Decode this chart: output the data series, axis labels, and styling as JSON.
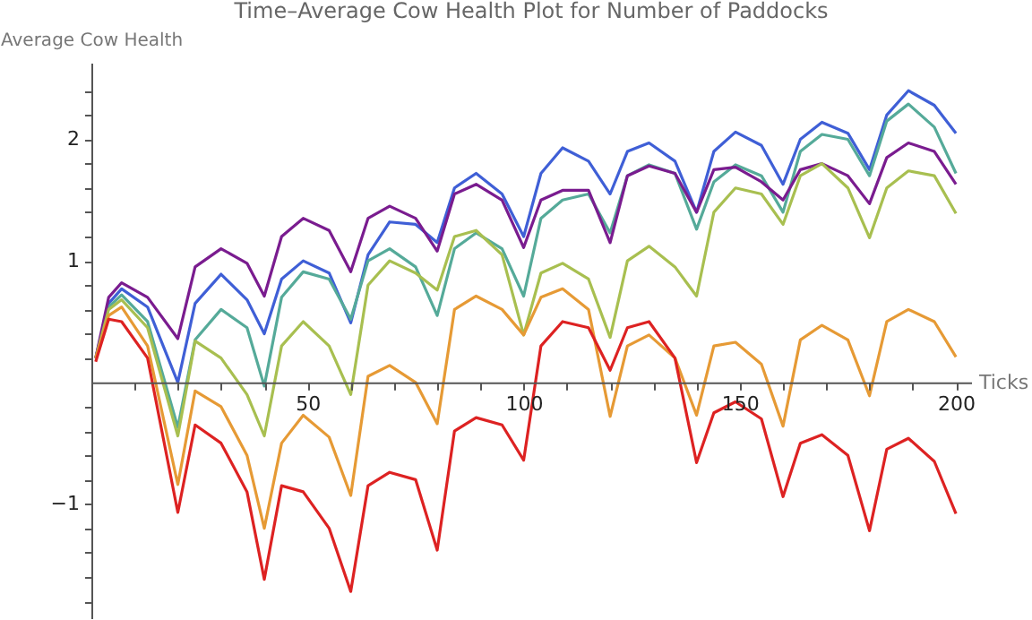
{
  "chart_data": {
    "type": "line",
    "title": "Time–Average Cow Health Plot for Number of Paddocks",
    "xlabel": "Ticks",
    "ylabel": "Average Cow Health",
    "x": [
      1,
      4,
      7,
      13,
      20,
      24,
      30,
      36,
      40,
      44,
      49,
      55,
      60,
      64,
      69,
      75,
      80,
      84,
      89,
      95,
      100,
      104,
      109,
      115,
      120,
      124,
      129,
      135,
      140,
      144,
      149,
      155,
      160,
      164,
      169,
      175,
      180,
      184,
      189,
      195,
      200
    ],
    "series": [
      {
        "color": "#3f5fd6",
        "values": [
          0.2,
          0.65,
          0.77,
          0.62,
          0.0,
          0.65,
          0.89,
          0.68,
          0.4,
          0.85,
          1.0,
          0.9,
          0.49,
          1.05,
          1.32,
          1.3,
          1.15,
          1.6,
          1.72,
          1.55,
          1.2,
          1.72,
          1.93,
          1.82,
          1.55,
          1.9,
          1.97,
          1.82,
          1.4,
          1.9,
          2.06,
          1.95,
          1.63,
          2.0,
          2.14,
          2.05,
          1.75,
          2.2,
          2.4,
          2.28,
          2.05
        ]
      },
      {
        "color": "#55aa99",
        "values": [
          0.2,
          0.62,
          0.72,
          0.5,
          -0.37,
          0.35,
          0.6,
          0.45,
          -0.03,
          0.7,
          0.91,
          0.85,
          0.52,
          1.0,
          1.1,
          0.95,
          0.55,
          1.1,
          1.23,
          1.1,
          0.71,
          1.35,
          1.5,
          1.55,
          1.23,
          1.7,
          1.79,
          1.72,
          1.26,
          1.65,
          1.79,
          1.7,
          1.4,
          1.9,
          2.04,
          2.0,
          1.7,
          2.15,
          2.29,
          2.1,
          1.72
        ]
      },
      {
        "color": "#7a1c8f",
        "values": [
          0.2,
          0.7,
          0.82,
          0.7,
          0.36,
          0.95,
          1.1,
          0.98,
          0.71,
          1.2,
          1.35,
          1.25,
          0.91,
          1.35,
          1.45,
          1.35,
          1.08,
          1.55,
          1.63,
          1.5,
          1.11,
          1.5,
          1.58,
          1.58,
          1.15,
          1.7,
          1.78,
          1.72,
          1.4,
          1.75,
          1.77,
          1.65,
          1.5,
          1.75,
          1.8,
          1.7,
          1.47,
          1.85,
          1.97,
          1.9,
          1.63
        ]
      },
      {
        "color": "#a8bf50",
        "values": [
          0.2,
          0.6,
          0.68,
          0.45,
          -0.44,
          0.34,
          0.2,
          -0.1,
          -0.44,
          0.3,
          0.5,
          0.3,
          -0.1,
          0.8,
          1.0,
          0.9,
          0.76,
          1.2,
          1.25,
          1.05,
          0.39,
          0.9,
          0.98,
          0.85,
          0.37,
          1.0,
          1.12,
          0.95,
          0.71,
          1.4,
          1.6,
          1.55,
          1.3,
          1.7,
          1.8,
          1.6,
          1.19,
          1.6,
          1.74,
          1.7,
          1.39
        ]
      },
      {
        "color": "#e69a35",
        "values": [
          0.2,
          0.55,
          0.62,
          0.3,
          -0.84,
          -0.07,
          -0.2,
          -0.6,
          -1.2,
          -0.5,
          -0.27,
          -0.45,
          -0.93,
          0.05,
          0.14,
          0.0,
          -0.34,
          0.6,
          0.71,
          0.6,
          0.39,
          0.7,
          0.77,
          0.6,
          -0.28,
          0.3,
          0.39,
          0.2,
          -0.27,
          0.3,
          0.33,
          0.15,
          -0.36,
          0.35,
          0.47,
          0.35,
          -0.11,
          0.5,
          0.6,
          0.5,
          0.21
        ]
      },
      {
        "color": "#dd2222",
        "values": [
          0.17,
          0.52,
          0.5,
          0.2,
          -1.07,
          -0.35,
          -0.5,
          -0.9,
          -1.62,
          -0.85,
          -0.9,
          -1.2,
          -1.72,
          -0.85,
          -0.74,
          -0.8,
          -1.38,
          -0.4,
          -0.29,
          -0.35,
          -0.64,
          0.3,
          0.5,
          0.45,
          0.1,
          0.45,
          0.5,
          0.2,
          -0.66,
          -0.25,
          -0.16,
          -0.3,
          -0.94,
          -0.5,
          -0.43,
          -0.6,
          -1.22,
          -0.55,
          -0.46,
          -0.65,
          -1.08
        ]
      }
    ],
    "xlim": [
      0,
      203.5
    ],
    "ylim": [
      -1.94,
      2.63
    ],
    "xticks": [
      {
        "value": 10,
        "label": null
      },
      {
        "value": 20,
        "label": null
      },
      {
        "value": 30,
        "label": null
      },
      {
        "value": 40,
        "label": null
      },
      50,
      {
        "value": 60,
        "label": null
      },
      {
        "value": 70,
        "label": null
      },
      {
        "value": 80,
        "label": null
      },
      {
        "value": 90,
        "label": null
      },
      100,
      {
        "value": 110,
        "label": null
      },
      {
        "value": 120,
        "label": null
      },
      {
        "value": 130,
        "label": null
      },
      {
        "value": 140,
        "label": null
      },
      150,
      {
        "value": 160,
        "label": null
      },
      {
        "value": 170,
        "label": null
      },
      {
        "value": 180,
        "label": null
      },
      {
        "value": 190,
        "label": null
      },
      200
    ],
    "yticks": [
      {
        "value": -1.8,
        "label": null
      },
      {
        "value": -1.6,
        "label": null
      },
      {
        "value": -1.4,
        "label": null
      },
      {
        "value": -1.2,
        "label": null
      },
      {
        "value": -1,
        "label": "−1"
      },
      {
        "value": -0.8,
        "label": null
      },
      {
        "value": -0.6,
        "label": null
      },
      {
        "value": -0.4,
        "label": null
      },
      {
        "value": -0.2,
        "label": null
      },
      {
        "value": 0.2,
        "label": null
      },
      {
        "value": 0.4,
        "label": null
      },
      {
        "value": 0.6,
        "label": null
      },
      {
        "value": 0.8,
        "label": null
      },
      1,
      {
        "value": 1.2,
        "label": null
      },
      {
        "value": 1.4,
        "label": null
      },
      {
        "value": 1.6,
        "label": null
      },
      {
        "value": 1.8,
        "label": null
      },
      2,
      {
        "value": 2.2,
        "label": null
      },
      {
        "value": 2.4,
        "label": null
      }
    ]
  }
}
